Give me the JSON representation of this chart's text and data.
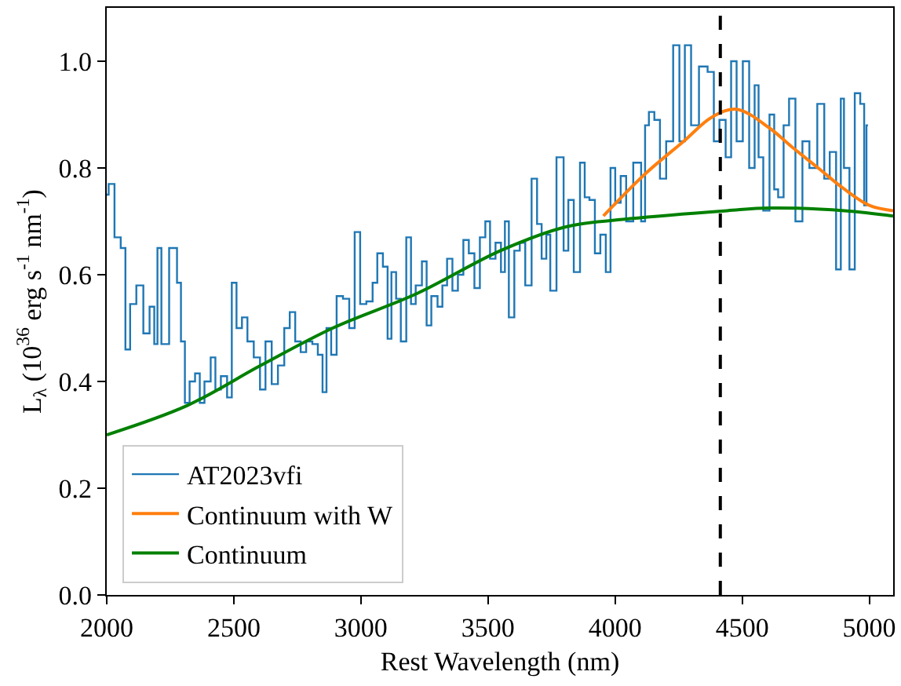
{
  "chart_data": {
    "type": "line",
    "xlabel": "Rest Wavelength (nm)",
    "ylabel": "L$_{λ}$ (10$^{36}$ erg s$^{-1}$ nm$^{-1}$)",
    "xlim": [
      2000,
      5094
    ],
    "xticks": [
      2000,
      2500,
      3000,
      3500,
      4000,
      4500,
      5000
    ],
    "ylim": [
      0,
      1.1
    ],
    "yticks": [
      {
        "value": 0,
        "label": "0.0"
      },
      0.2,
      0.4,
      0.6,
      0.8,
      {
        "value": 1,
        "label": "1.0"
      }
    ],
    "legend": "bottom left",
    "ref_lines": [
      {
        "axis": "x",
        "value": 4414,
        "color": "#000000",
        "line_style": "dashed"
      }
    ],
    "series": [
      {
        "name": "AT2023vfi",
        "type": "step",
        "color": "#1f77b4",
        "x": [
          2000,
          2015,
          2046,
          2064,
          2083,
          2101,
          2132,
          2156,
          2181,
          2193,
          2206,
          2224,
          2267,
          2286,
          2298,
          2317,
          2335,
          2360,
          2372,
          2397,
          2421,
          2434,
          2464,
          2483,
          2501,
          2520,
          2544,
          2563,
          2594,
          2612,
          2637,
          2661,
          2686,
          2711,
          2729,
          2754,
          2772,
          2797,
          2821,
          2840,
          2858,
          2871,
          2895,
          2914,
          2945,
          2963,
          2988,
          3006,
          3037,
          3055,
          3074,
          3099,
          3111,
          3129,
          3148,
          3166,
          3191,
          3203,
          3228,
          3252,
          3265,
          3289,
          3314,
          3327,
          3351,
          3369,
          3394,
          3412,
          3437,
          3456,
          3480,
          3499,
          3517,
          3542,
          3560,
          3573,
          3591,
          3616,
          3634,
          3659,
          3684,
          3702,
          3720,
          3739,
          3751,
          3788,
          3807,
          3825,
          3850,
          3874,
          3887,
          3911,
          3930,
          3954,
          3973,
          3991,
          4010,
          4034,
          4053,
          4090,
          4115,
          4121,
          4145,
          4164,
          4189,
          4213,
          4244,
          4262,
          4287,
          4311,
          4349,
          4379,
          4398,
          4423,
          4447,
          4466,
          4490,
          4515,
          4540,
          4558,
          4571,
          4595,
          4620,
          4632,
          4651,
          4675,
          4694,
          4725,
          4749,
          4780,
          4811,
          4835,
          4854,
          4885,
          4891,
          4910,
          4934,
          4952,
          4977,
          4983,
          4995
        ],
        "values": [
          0.75,
          0.77,
          0.67,
          0.65,
          0.46,
          0.545,
          0.58,
          0.49,
          0.54,
          0.47,
          0.65,
          0.47,
          0.65,
          0.585,
          0.475,
          0.36,
          0.4,
          0.415,
          0.36,
          0.4,
          0.445,
          0.385,
          0.41,
          0.37,
          0.585,
          0.5,
          0.52,
          0.475,
          0.445,
          0.385,
          0.475,
          0.395,
          0.43,
          0.5,
          0.53,
          0.475,
          0.455,
          0.475,
          0.47,
          0.45,
          0.38,
          0.5,
          0.45,
          0.56,
          0.555,
          0.5,
          0.68,
          0.545,
          0.55,
          0.585,
          0.64,
          0.615,
          0.48,
          0.605,
          0.555,
          0.475,
          0.67,
          0.545,
          0.58,
          0.625,
          0.505,
          0.56,
          0.54,
          0.58,
          0.63,
          0.57,
          0.6,
          0.665,
          0.64,
          0.575,
          0.67,
          0.7,
          0.63,
          0.66,
          0.605,
          0.7,
          0.52,
          0.645,
          0.66,
          0.58,
          0.78,
          0.695,
          0.63,
          0.675,
          0.57,
          0.82,
          0.645,
          0.74,
          0.605,
          0.81,
          0.745,
          0.74,
          0.64,
          0.675,
          0.605,
          0.8,
          0.735,
          0.785,
          0.7,
          0.81,
          0.7,
          0.88,
          0.905,
          0.89,
          0.78,
          0.85,
          1.03,
          0.85,
          1.03,
          0.88,
          0.99,
          0.98,
          0.85,
          0.89,
          0.82,
          1.0,
          0.85,
          1.0,
          0.8,
          0.955,
          0.82,
          0.72,
          0.9,
          0.76,
          0.745,
          0.88,
          0.93,
          0.7,
          0.85,
          0.8,
          0.92,
          0.78,
          0.83,
          0.61,
          0.93,
          0.8,
          0.61,
          0.94,
          0.92,
          0.73,
          0.88
        ]
      },
      {
        "name": "Continuum with W",
        "color": "#ff7f0e",
        "x": [
          3954,
          4121,
          4270,
          4380,
          4478,
          4607,
          4694,
          4799,
          4903,
          5000,
          5094
        ],
        "values": [
          0.71,
          0.79,
          0.85,
          0.895,
          0.91,
          0.875,
          0.84,
          0.8,
          0.76,
          0.73,
          0.72
        ]
      },
      {
        "name": "Continuum",
        "color": "#008000",
        "x": [
          2000,
          2317,
          2606,
          2889,
          3222,
          3549,
          3810,
          4059,
          4441,
          4607,
          4903,
          5094
        ],
        "values": [
          0.3,
          0.355,
          0.43,
          0.5,
          0.565,
          0.645,
          0.69,
          0.705,
          0.72,
          0.725,
          0.72,
          0.71
        ]
      }
    ]
  }
}
